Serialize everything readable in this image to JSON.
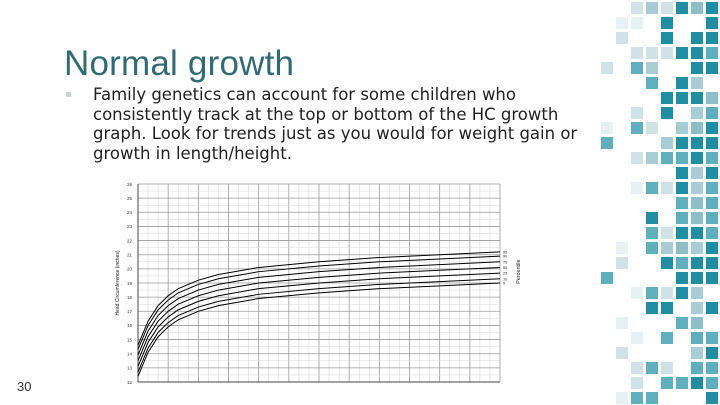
{
  "slide": {
    "title": "Normal growth",
    "bullet": "Family genetics can account for some children who consistently track at the top or bottom of the HC growth graph. Look for trends just as you would for weight gain or growth in length/height.",
    "page_number": "30"
  },
  "chart_data": {
    "type": "line",
    "ylabel": "Head Circumference (inches)",
    "right_label": "Percentile",
    "y_ticks": [
      "26",
      "25",
      "24",
      "23",
      "22",
      "21",
      "20",
      "19",
      "18",
      "17",
      "16",
      "15",
      "14",
      "13",
      "12"
    ],
    "ylim": [
      12,
      26
    ],
    "percentiles": [
      "95",
      "90",
      "75",
      "50",
      "25",
      "10",
      "5"
    ],
    "series": [
      {
        "name": "95",
        "x": [
          0,
          1,
          2,
          3,
          4,
          6,
          8,
          12,
          18,
          24,
          30,
          36
        ],
        "values": [
          14.6,
          16.3,
          17.4,
          18.1,
          18.6,
          19.2,
          19.6,
          20.1,
          20.5,
          20.8,
          21.0,
          21.2
        ]
      },
      {
        "name": "90",
        "x": [
          0,
          1,
          2,
          3,
          4,
          6,
          8,
          12,
          18,
          24,
          30,
          36
        ],
        "values": [
          14.3,
          16.0,
          17.1,
          17.8,
          18.3,
          18.9,
          19.3,
          19.8,
          20.2,
          20.5,
          20.7,
          20.9
        ]
      },
      {
        "name": "75",
        "x": [
          0,
          1,
          2,
          3,
          4,
          6,
          8,
          12,
          18,
          24,
          30,
          36
        ],
        "values": [
          13.9,
          15.6,
          16.7,
          17.4,
          17.9,
          18.5,
          18.9,
          19.4,
          19.8,
          20.1,
          20.3,
          20.5
        ]
      },
      {
        "name": "50",
        "x": [
          0,
          1,
          2,
          3,
          4,
          6,
          8,
          12,
          18,
          24,
          30,
          36
        ],
        "values": [
          13.5,
          15.2,
          16.3,
          17.0,
          17.5,
          18.1,
          18.5,
          19.0,
          19.4,
          19.7,
          19.9,
          20.1
        ]
      },
      {
        "name": "25",
        "x": [
          0,
          1,
          2,
          3,
          4,
          6,
          8,
          12,
          18,
          24,
          30,
          36
        ],
        "values": [
          13.1,
          14.8,
          15.9,
          16.6,
          17.1,
          17.7,
          18.1,
          18.6,
          19.0,
          19.3,
          19.5,
          19.7
        ]
      },
      {
        "name": "10",
        "x": [
          0,
          1,
          2,
          3,
          4,
          6,
          8,
          12,
          18,
          24,
          30,
          36
        ],
        "values": [
          12.7,
          14.4,
          15.5,
          16.2,
          16.7,
          17.3,
          17.7,
          18.2,
          18.6,
          18.9,
          19.1,
          19.3
        ]
      },
      {
        "name": "5",
        "x": [
          0,
          1,
          2,
          3,
          4,
          6,
          8,
          12,
          18,
          24,
          30,
          36
        ],
        "values": [
          12.4,
          14.1,
          15.2,
          15.9,
          16.4,
          17.0,
          17.4,
          17.9,
          18.3,
          18.6,
          18.8,
          19.0
        ]
      }
    ],
    "grid": true,
    "line_color": "#000000"
  },
  "decor": {
    "mosaic_colors": [
      "#1f8ea3",
      "#5fb0bf",
      "#a8ced5",
      "#cfe3e7",
      "#e7f1f3",
      "#8cbfc9"
    ]
  }
}
